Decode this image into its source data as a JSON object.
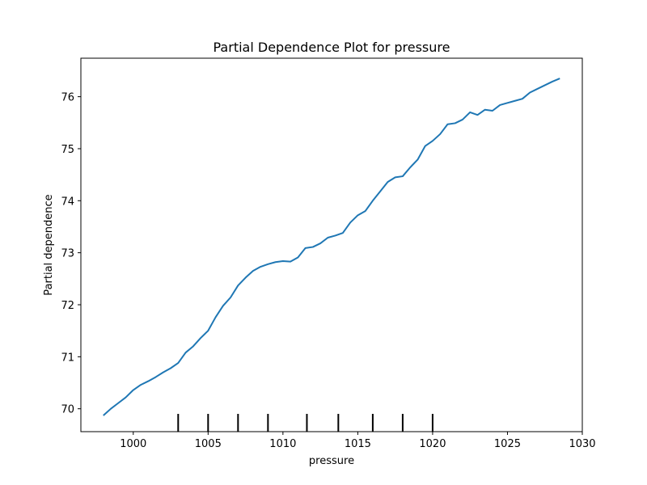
{
  "chart_data": {
    "type": "line",
    "title": "Partial Dependence Plot for pressure",
    "xlabel": "pressure",
    "ylabel": "Partial dependence",
    "xlim": [
      996.5,
      1030
    ],
    "ylim": [
      69.56,
      76.74
    ],
    "xticks": [
      1000,
      1005,
      1010,
      1015,
      1020,
      1025,
      1030
    ],
    "xtick_labels": [
      "1000",
      "1005",
      "1010",
      "1015",
      "1020",
      "1025",
      "1030"
    ],
    "yticks": [
      70,
      71,
      72,
      73,
      74,
      75,
      76
    ],
    "ytick_labels": [
      "70",
      "71",
      "72",
      "73",
      "74",
      "75",
      "76"
    ],
    "grid": false,
    "series": [
      {
        "color": "#1f77b4",
        "x": [
          998.0,
          998.5,
          999.0,
          999.5,
          1000.0,
          1000.5,
          1001.0,
          1001.5,
          1002.0,
          1002.5,
          1003.0,
          1003.5,
          1004.0,
          1004.5,
          1005.0,
          1005.5,
          1006.0,
          1006.5,
          1007.0,
          1007.5,
          1008.0,
          1008.5,
          1009.0,
          1009.5,
          1010.0,
          1010.5,
          1011.0,
          1011.5,
          1012.0,
          1012.5,
          1013.0,
          1013.5,
          1014.0,
          1014.5,
          1015.0,
          1015.5,
          1016.0,
          1016.5,
          1017.0,
          1017.5,
          1018.0,
          1018.5,
          1019.0,
          1019.5,
          1020.0,
          1020.5,
          1021.0,
          1021.5,
          1022.0,
          1022.5,
          1023.0,
          1023.5,
          1024.0,
          1024.5,
          1025.0,
          1025.5,
          1026.0,
          1026.5,
          1027.0,
          1027.5,
          1028.0,
          1028.5
        ],
        "y": [
          69.87,
          70.0,
          70.11,
          70.22,
          70.36,
          70.46,
          70.53,
          70.61,
          70.7,
          70.78,
          70.88,
          71.08,
          71.2,
          71.36,
          71.5,
          71.76,
          71.98,
          72.14,
          72.37,
          72.52,
          72.65,
          72.73,
          72.78,
          72.82,
          72.84,
          72.83,
          72.91,
          73.09,
          73.11,
          73.18,
          73.29,
          73.33,
          73.38,
          73.58,
          73.72,
          73.8,
          74.0,
          74.18,
          74.36,
          74.45,
          74.47,
          74.64,
          74.79,
          75.05,
          75.15,
          75.28,
          75.47,
          75.49,
          75.56,
          75.7,
          75.65,
          75.75,
          75.73,
          75.84,
          75.88,
          75.92,
          75.96,
          76.08,
          76.15,
          76.22,
          76.29,
          76.35
        ]
      }
    ],
    "rug": [
      1003,
      1005,
      1007,
      1009,
      1011.6,
      1013.7,
      1016,
      1018,
      1020
    ]
  }
}
